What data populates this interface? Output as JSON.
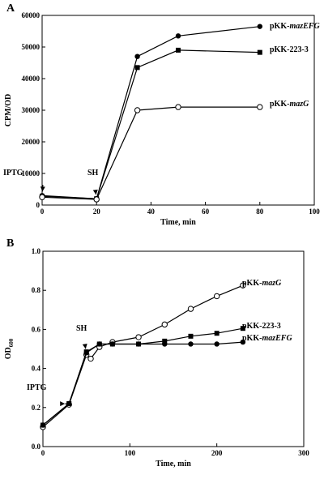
{
  "chart_data": [
    {
      "type": "line",
      "panel": "A",
      "xlabel": "Time, min",
      "ylabel": "CPM/OD",
      "xlim": [
        0,
        100
      ],
      "ylim": [
        0,
        60000
      ],
      "xticks": [
        0,
        20,
        40,
        60,
        80,
        100
      ],
      "yticks": [
        0,
        10000,
        20000,
        30000,
        40000,
        50000,
        60000
      ],
      "grid": false,
      "series": [
        {
          "name": "pKK-mazEFG",
          "label_main": "pKK-",
          "label_italic": "mazEFG",
          "marker": "filled-circle",
          "x": [
            0,
            20,
            35,
            50,
            80
          ],
          "y": [
            3000,
            2000,
            47000,
            53500,
            56500
          ]
        },
        {
          "name": "pKK-223-3",
          "label_main": "pKK-223-3",
          "label_italic": "",
          "marker": "filled-square",
          "x": [
            0,
            20,
            35,
            50,
            80
          ],
          "y": [
            2800,
            2000,
            43500,
            49000,
            48300
          ]
        },
        {
          "name": "pKK-mazG",
          "label_main": "pKK-",
          "label_italic": "mazG",
          "marker": "open-circle",
          "x": [
            0,
            20,
            35,
            50,
            80
          ],
          "y": [
            2500,
            1800,
            30000,
            31000,
            31000
          ]
        }
      ],
      "annotations": [
        {
          "text": "IPTG",
          "x": 0,
          "y": 3000
        },
        {
          "text": "SH",
          "x": 20,
          "y": 2000
        }
      ]
    },
    {
      "type": "line",
      "panel": "B",
      "xlabel": "Time, min",
      "ylabel_main": "OD",
      "ylabel_sub": "600",
      "xlim": [
        0,
        300
      ],
      "ylim": [
        0,
        1.0
      ],
      "xticks": [
        0,
        100,
        200,
        300
      ],
      "yticks": [
        0.0,
        0.2,
        0.4,
        0.6,
        0.8,
        1.0
      ],
      "grid": false,
      "series": [
        {
          "name": "pKK-mazG",
          "label_main": "pKK-",
          "label_italic": "mazG",
          "marker": "open-circle",
          "x": [
            0,
            30,
            50,
            55,
            65,
            80,
            110,
            140,
            170,
            200,
            230
          ],
          "y": [
            0.1,
            0.215,
            0.47,
            0.45,
            0.51,
            0.535,
            0.56,
            0.625,
            0.705,
            0.77,
            0.825
          ]
        },
        {
          "name": "pKK-223-3",
          "label_main": "pKK-223-3",
          "label_italic": "",
          "marker": "filled-square",
          "x": [
            0,
            30,
            50,
            65,
            80,
            110,
            140,
            170,
            200,
            230
          ],
          "y": [
            0.11,
            0.22,
            0.485,
            0.525,
            0.525,
            0.525,
            0.54,
            0.565,
            0.58,
            0.605
          ]
        },
        {
          "name": "pKK-mazEFG",
          "label_main": "pKK-",
          "label_italic": "mazEFG",
          "marker": "filled-circle",
          "x": [
            0,
            30,
            50,
            65,
            80,
            110,
            140,
            170,
            200,
            230
          ],
          "y": [
            0.11,
            0.22,
            0.48,
            0.525,
            0.525,
            0.525,
            0.525,
            0.525,
            0.525,
            0.535
          ]
        }
      ],
      "annotations": [
        {
          "text": "IPTG",
          "x": 30,
          "y": 0.22
        },
        {
          "text": "SH",
          "x": 50,
          "y": 0.48
        }
      ]
    }
  ]
}
